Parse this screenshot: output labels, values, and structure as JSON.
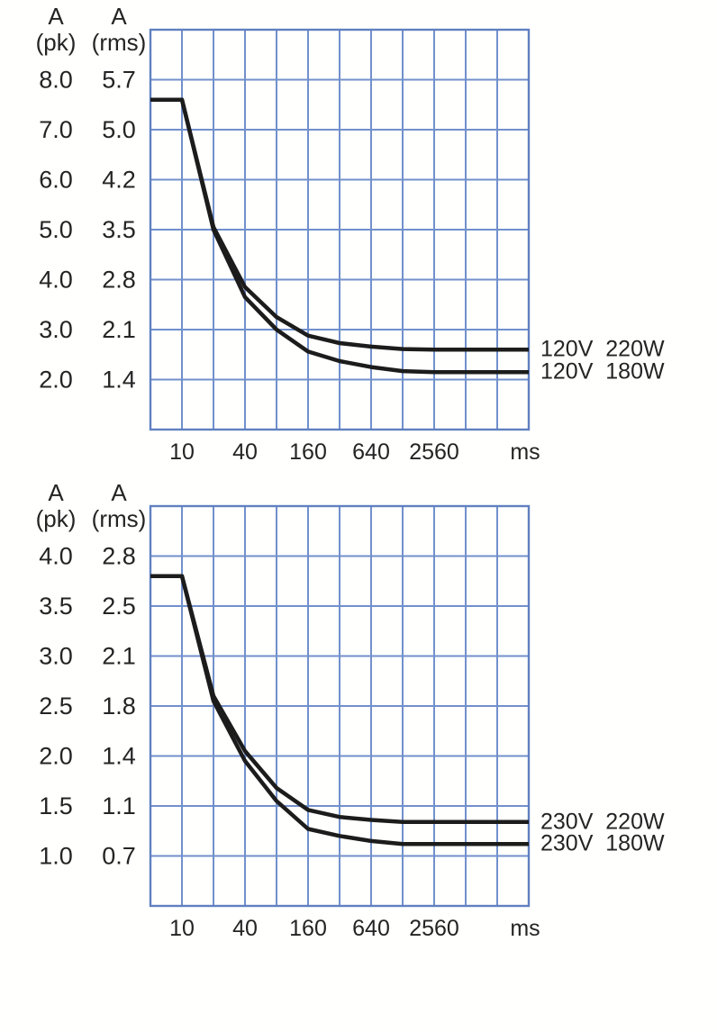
{
  "style": {
    "background": "#fffffe",
    "grid_color": "#7190cc",
    "grid_border_color": "#6080c0",
    "curve_color": "#1c1c1c",
    "text_color": "#242424"
  },
  "chart_data": [
    {
      "type": "line",
      "id": "inrush-120v",
      "grid": "on",
      "legend_position": "right-of-curves",
      "x_axis": {
        "unit": "ms",
        "scale": "log2",
        "range_ms": [
          5,
          20480
        ],
        "ticks": [
          10,
          40,
          160,
          640,
          2560
        ]
      },
      "y_axis": {
        "col_pk_header": [
          "A",
          "(pk)"
        ],
        "col_rms_header": [
          "A",
          "(rms)"
        ],
        "pk_ticks": [
          "8.0",
          "7.0",
          "6.0",
          "5.0",
          "4.0",
          "3.0",
          "2.0"
        ],
        "rms_ticks": [
          "5.7",
          "5.0",
          "4.2",
          "3.5",
          "2.8",
          "2.1",
          "1.4"
        ],
        "pk_top": 9.0,
        "pk_bottom": 1.0
      },
      "series": [
        {
          "name": "120V  220W",
          "points_t_apk": [
            [
              5,
              7.6
            ],
            [
              10,
              7.6
            ],
            [
              20,
              5.05
            ],
            [
              40,
              3.85
            ],
            [
              80,
              3.25
            ],
            [
              160,
              2.88
            ],
            [
              320,
              2.73
            ],
            [
              640,
              2.66
            ],
            [
              1280,
              2.61
            ],
            [
              2560,
              2.6
            ],
            [
              20480,
              2.6
            ]
          ]
        },
        {
          "name": "120V  180W",
          "points_t_apk": [
            [
              5,
              7.6
            ],
            [
              10,
              7.6
            ],
            [
              20,
              5.0
            ],
            [
              40,
              3.65
            ],
            [
              80,
              3.0
            ],
            [
              160,
              2.56
            ],
            [
              320,
              2.37
            ],
            [
              640,
              2.25
            ],
            [
              1280,
              2.17
            ],
            [
              2560,
              2.15
            ],
            [
              20480,
              2.15
            ]
          ]
        }
      ]
    },
    {
      "type": "line",
      "id": "inrush-230v",
      "grid": "on",
      "legend_position": "right-of-curves",
      "x_axis": {
        "unit": "ms",
        "scale": "log2",
        "range_ms": [
          5,
          20480
        ],
        "ticks": [
          10,
          40,
          160,
          640,
          2560
        ]
      },
      "y_axis": {
        "col_pk_header": [
          "A",
          "(pk)"
        ],
        "col_rms_header": [
          "A",
          "(rms)"
        ],
        "pk_ticks": [
          "4.0",
          "3.5",
          "3.0",
          "2.5",
          "2.0",
          "1.5",
          "1.0"
        ],
        "rms_ticks": [
          "2.8",
          "2.5",
          "2.1",
          "1.8",
          "1.4",
          "1.1",
          "0.7"
        ],
        "pk_top": 4.5,
        "pk_bottom": 0.5
      },
      "series": [
        {
          "name": "230V  220W",
          "points_t_apk": [
            [
              5,
              3.8
            ],
            [
              10,
              3.8
            ],
            [
              20,
              2.6
            ],
            [
              40,
              2.05
            ],
            [
              80,
              1.68
            ],
            [
              160,
              1.46
            ],
            [
              320,
              1.39
            ],
            [
              640,
              1.36
            ],
            [
              1280,
              1.34
            ],
            [
              2560,
              1.34
            ],
            [
              20480,
              1.34
            ]
          ]
        },
        {
          "name": "230V  180W",
          "points_t_apk": [
            [
              5,
              3.8
            ],
            [
              10,
              3.8
            ],
            [
              20,
              2.55
            ],
            [
              40,
              1.95
            ],
            [
              80,
              1.55
            ],
            [
              160,
              1.27
            ],
            [
              320,
              1.2
            ],
            [
              640,
              1.15
            ],
            [
              1280,
              1.12
            ],
            [
              2560,
              1.12
            ],
            [
              20480,
              1.12
            ]
          ]
        }
      ]
    }
  ]
}
